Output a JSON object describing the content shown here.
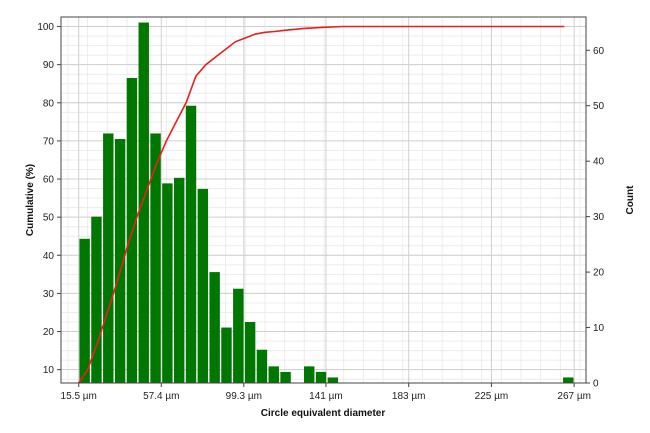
{
  "chart_data": {
    "type": "bar",
    "xlabel": "Circle equivalent diameter",
    "ylabel_left": "Cumulative (%)",
    "ylabel_right": "Count",
    "x_ticks": [
      "15.5 µm",
      "57.4 µm",
      "99.3 µm",
      "141 µm",
      "183 µm",
      "225 µm",
      "267 µm"
    ],
    "x_tick_values": [
      15.5,
      57.4,
      99.3,
      141,
      183,
      225,
      267
    ],
    "xlim": [
      6.5,
      273
    ],
    "y_left_ticks": [
      "10",
      "20",
      "30",
      "40",
      "50",
      "60",
      "70",
      "80",
      "90",
      "100"
    ],
    "y_left_tick_values": [
      10,
      20,
      30,
      40,
      50,
      60,
      70,
      80,
      90,
      100
    ],
    "y_left_lim": [
      6.5,
      102.5
    ],
    "y_right_ticks": [
      "0",
      "10",
      "20",
      "30",
      "40",
      "50",
      "60"
    ],
    "y_right_tick_values": [
      0,
      10,
      20,
      30,
      40,
      50,
      60
    ],
    "y_right_lim": [
      0,
      66
    ],
    "grid": true,
    "bar_color": "#007700",
    "line_color": "#e8201c",
    "bin_width": 6,
    "series": [
      {
        "type": "bar",
        "axis": "right",
        "bins": [
          {
            "x": 18.5,
            "count": 26
          },
          {
            "x": 24.5,
            "count": 30
          },
          {
            "x": 30.5,
            "count": 45
          },
          {
            "x": 36.5,
            "count": 44
          },
          {
            "x": 42.5,
            "count": 55
          },
          {
            "x": 48.5,
            "count": 65
          },
          {
            "x": 54.5,
            "count": 45
          },
          {
            "x": 60.5,
            "count": 36
          },
          {
            "x": 66.5,
            "count": 37
          },
          {
            "x": 72.5,
            "count": 50
          },
          {
            "x": 78.5,
            "count": 35
          },
          {
            "x": 84.5,
            "count": 20
          },
          {
            "x": 90.5,
            "count": 10
          },
          {
            "x": 96.5,
            "count": 17
          },
          {
            "x": 102.5,
            "count": 11
          },
          {
            "x": 108.5,
            "count": 6
          },
          {
            "x": 114.5,
            "count": 3
          },
          {
            "x": 120.5,
            "count": 2
          },
          {
            "x": 132.5,
            "count": 3
          },
          {
            "x": 138.5,
            "count": 2
          },
          {
            "x": 144.5,
            "count": 1
          },
          {
            "x": 264,
            "count": 1
          }
        ]
      },
      {
        "type": "line",
        "axis": "left",
        "x": [
          15.5,
          20,
          25,
          30,
          35,
          40,
          45,
          50,
          55,
          60,
          65,
          70,
          75,
          80,
          85,
          90,
          95,
          100,
          105,
          110,
          115,
          120,
          130,
          140,
          150,
          200,
          262
        ],
        "y": [
          6.5,
          10,
          17,
          25,
          33,
          42,
          50,
          57,
          64,
          70,
          75,
          80,
          87,
          90,
          92,
          94,
          96,
          97,
          98,
          98.5,
          98.7,
          99,
          99.5,
          99.8,
          100,
          100,
          100
        ]
      }
    ]
  }
}
